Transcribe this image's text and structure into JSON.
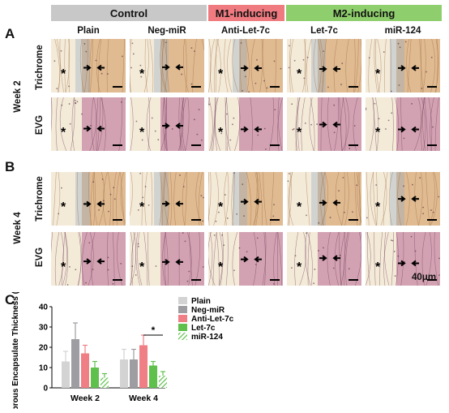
{
  "header": {
    "groups": [
      {
        "label": "Control",
        "color": "#c8c8c8"
      },
      {
        "label": "M1-inducing",
        "color": "#ef7a80"
      },
      {
        "label": "M2-inducing",
        "color": "#8fce6c"
      }
    ],
    "columns": [
      "Plain",
      "Neg-miR",
      "Anti-Let-7c",
      "Let-7c",
      "miR-124"
    ]
  },
  "panels": [
    {
      "letter": "A",
      "week": "Week 2",
      "rows": [
        "Trichrome",
        "EVG"
      ]
    },
    {
      "letter": "B",
      "week": "Week 4",
      "rows": [
        "Trichrome",
        "EVG"
      ]
    }
  ],
  "scale_label": "40μm",
  "asterisk": "*",
  "colors": {
    "trichrome": "#d9a97a",
    "evg": "#c88aa5",
    "blue_tint": "#8fa8c6"
  },
  "chart_letter": "C",
  "chart_data": {
    "type": "bar",
    "categories": [
      "Week 2",
      "Week 4"
    ],
    "ylabel": "Fibrous Encapsulate Thickness (μm)",
    "ylim": [
      0,
      40
    ],
    "yticks": [
      "0",
      "10",
      "20",
      "30",
      "40"
    ],
    "series": [
      {
        "name": "Plain",
        "color": "#d3d3d3",
        "values": [
          13,
          14
        ],
        "errors": [
          5,
          5
        ]
      },
      {
        "name": "Neg-miR",
        "color": "#9d9da2",
        "values": [
          24,
          14
        ],
        "errors": [
          8,
          5
        ]
      },
      {
        "name": "Anti-Let-7c",
        "color": "#ef7f84",
        "values": [
          17,
          21
        ],
        "errors": [
          4,
          5
        ]
      },
      {
        "name": "Let-7c",
        "color": "#5fc04b",
        "values": [
          10,
          11
        ],
        "errors": [
          3,
          2
        ]
      },
      {
        "name": "miR-124",
        "color": "#5fc04b",
        "hatched": true,
        "values": [
          5,
          6
        ],
        "errors": [
          2,
          2
        ]
      }
    ],
    "significance": "*"
  }
}
